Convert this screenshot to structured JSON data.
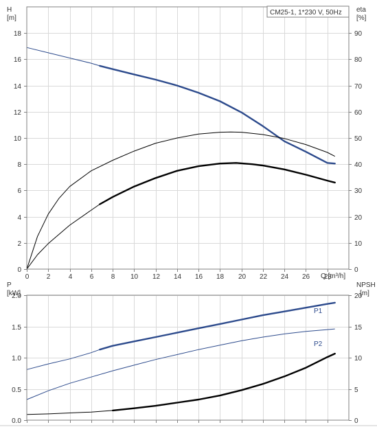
{
  "chart_data": [
    {
      "type": "line",
      "panel": "top",
      "title": "CM25-1, 1*230 V, 50Hz",
      "xlabel": "Q [m³/h]",
      "ylabel_left": "H",
      "ylabel_left_unit": "[m]",
      "ylabel_right": "eta",
      "ylabel_right_unit": "[%]",
      "xlim": [
        0,
        30
      ],
      "ylim_left": [
        0,
        20
      ],
      "ylim_right": [
        0,
        100
      ],
      "x_ticks": [
        0,
        2,
        4,
        6,
        8,
        10,
        12,
        14,
        16,
        18,
        20,
        22,
        24,
        26,
        28
      ],
      "y_ticks_left": [
        0,
        2,
        4,
        6,
        8,
        10,
        12,
        14,
        16,
        18
      ],
      "y_ticks_right": [
        0,
        10,
        20,
        30,
        40,
        50,
        60,
        70,
        80,
        90
      ],
      "grid": true,
      "series": [
        {
          "name": "",
          "axis": "left",
          "color": "#2c4a8c",
          "points": [
            [
              0,
              16.9
            ],
            [
              2,
              16.5
            ],
            [
              4,
              16.1
            ],
            [
              6,
              15.7
            ],
            [
              6.8,
              15.5
            ],
            [
              8,
              15.25
            ],
            [
              10,
              14.85
            ],
            [
              12,
              14.45
            ],
            [
              14,
              14.0
            ],
            [
              16,
              13.45
            ],
            [
              18,
              12.8
            ],
            [
              20,
              11.95
            ],
            [
              22,
              10.9
            ],
            [
              24,
              9.75
            ],
            [
              26,
              8.95
            ],
            [
              28,
              8.1
            ],
            [
              28.7,
              8.05
            ]
          ],
          "bold_from": 6.8
        },
        {
          "name": "",
          "axis": "right",
          "color": "#000000",
          "points": [
            [
              0,
              0
            ],
            [
              1,
              12.5
            ],
            [
              2,
              21
            ],
            [
              3,
              27
            ],
            [
              4,
              31.5
            ],
            [
              6,
              37.5
            ],
            [
              8,
              41.5
            ],
            [
              10,
              45
            ],
            [
              12,
              48
            ],
            [
              14,
              50
            ],
            [
              16,
              51.5
            ],
            [
              18,
              52.2
            ],
            [
              19,
              52.3
            ],
            [
              20,
              52.2
            ],
            [
              22,
              51.3
            ],
            [
              24,
              49.8
            ],
            [
              26,
              47.5
            ],
            [
              28,
              44.5
            ],
            [
              28.7,
              43
            ]
          ],
          "bold_from": null
        },
        {
          "name": "",
          "axis": "left",
          "color": "#000000",
          "points": [
            [
              0,
              0
            ],
            [
              1,
              1.1
            ],
            [
              2,
              1.95
            ],
            [
              4,
              3.35
            ],
            [
              6,
              4.5
            ],
            [
              6.8,
              4.95
            ],
            [
              8,
              5.5
            ],
            [
              10,
              6.3
            ],
            [
              12,
              6.95
            ],
            [
              14,
              7.5
            ],
            [
              16,
              7.85
            ],
            [
              18,
              8.05
            ],
            [
              19.5,
              8.1
            ],
            [
              21,
              8.0
            ],
            [
              22,
              7.9
            ],
            [
              24,
              7.6
            ],
            [
              26,
              7.2
            ],
            [
              28,
              6.75
            ],
            [
              28.7,
              6.6
            ]
          ],
          "bold_from": 6.8
        }
      ]
    },
    {
      "type": "line",
      "panel": "bottom",
      "xlabel": "",
      "ylabel_left": "P",
      "ylabel_left_unit": "[kW]",
      "ylabel_right": "NPSH",
      "ylabel_right_unit": "[m]",
      "xlim": [
        0,
        30
      ],
      "ylim_left": [
        0,
        2.0
      ],
      "ylim_right": [
        0,
        20
      ],
      "y_ticks_left": [
        0.0,
        0.5,
        1.0,
        1.5,
        2.0
      ],
      "y_ticks_right": [
        0,
        5,
        10,
        15,
        20
      ],
      "grid": true,
      "series": [
        {
          "name": "P1",
          "axis": "left",
          "color": "#2c4a8c",
          "points": [
            [
              0,
              0.81
            ],
            [
              2,
              0.9
            ],
            [
              4,
              0.98
            ],
            [
              6,
              1.08
            ],
            [
              6.8,
              1.13
            ],
            [
              8,
              1.19
            ],
            [
              10,
              1.26
            ],
            [
              12,
              1.33
            ],
            [
              14,
              1.4
            ],
            [
              16,
              1.47
            ],
            [
              18,
              1.54
            ],
            [
              20,
              1.61
            ],
            [
              22,
              1.68
            ],
            [
              24,
              1.74
            ],
            [
              26,
              1.8
            ],
            [
              28,
              1.86
            ],
            [
              28.7,
              1.88
            ]
          ],
          "bold_from": 6.8
        },
        {
          "name": "P2",
          "axis": "left",
          "color": "#2c4a8c",
          "points": [
            [
              0,
              0.33
            ],
            [
              2,
              0.47
            ],
            [
              4,
              0.59
            ],
            [
              6,
              0.69
            ],
            [
              8,
              0.79
            ],
            [
              10,
              0.88
            ],
            [
              12,
              0.97
            ],
            [
              14,
              1.05
            ],
            [
              16,
              1.13
            ],
            [
              18,
              1.2
            ],
            [
              20,
              1.27
            ],
            [
              22,
              1.33
            ],
            [
              24,
              1.38
            ],
            [
              26,
              1.42
            ],
            [
              28,
              1.45
            ],
            [
              28.7,
              1.46
            ]
          ],
          "bold_from": null
        },
        {
          "name": "",
          "axis": "right",
          "color": "#000000",
          "points": [
            [
              0,
              0.9
            ],
            [
              2,
              1.0
            ],
            [
              4,
              1.15
            ],
            [
              6,
              1.3
            ],
            [
              8,
              1.55
            ],
            [
              10,
              1.9
            ],
            [
              12,
              2.3
            ],
            [
              14,
              2.8
            ],
            [
              16,
              3.3
            ],
            [
              18,
              3.95
            ],
            [
              20,
              4.8
            ],
            [
              22,
              5.8
            ],
            [
              24,
              7.0
            ],
            [
              26,
              8.4
            ],
            [
              28,
              10.1
            ],
            [
              28.7,
              10.65
            ]
          ],
          "bold_from": 6.8
        }
      ]
    }
  ]
}
